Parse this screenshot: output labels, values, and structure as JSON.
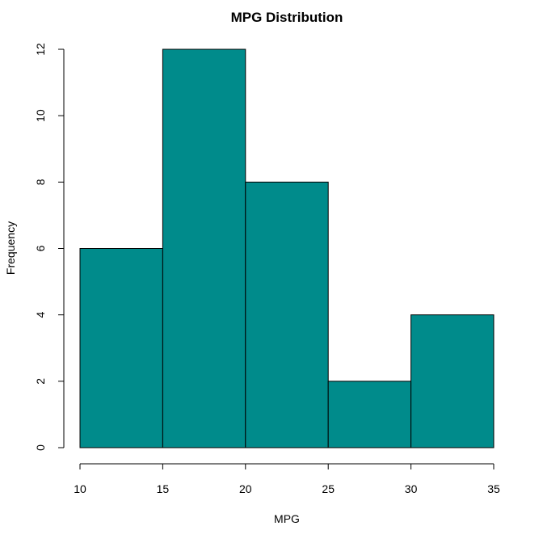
{
  "chart_data": {
    "type": "bar",
    "subtype": "histogram",
    "title": "MPG Distribution",
    "xlabel": "MPG",
    "ylabel": "Frequency",
    "bins": [
      {
        "start": 10,
        "end": 15,
        "count": 6
      },
      {
        "start": 15,
        "end": 20,
        "count": 12
      },
      {
        "start": 20,
        "end": 25,
        "count": 8
      },
      {
        "start": 25,
        "end": 30,
        "count": 2
      },
      {
        "start": 30,
        "end": 35,
        "count": 4
      }
    ],
    "xlim": [
      10,
      35
    ],
    "ylim": [
      0,
      12
    ],
    "xticks": [
      "10",
      "15",
      "20",
      "25",
      "30",
      "35"
    ],
    "yticks": [
      "0",
      "2",
      "4",
      "6",
      "8",
      "10",
      "12"
    ],
    "bar_color": "#008B8B",
    "grid": false,
    "legend": "none"
  }
}
